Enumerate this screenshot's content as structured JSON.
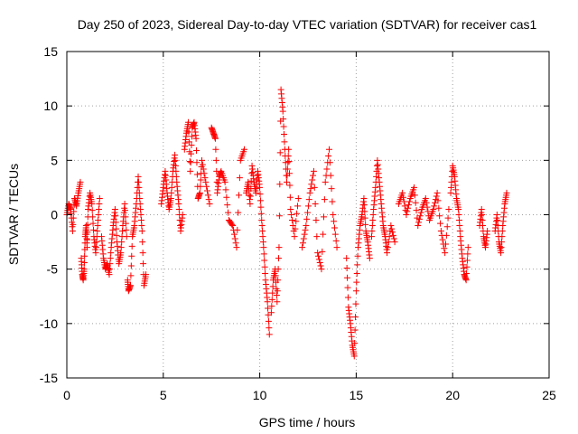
{
  "chart_data": {
    "type": "scatter",
    "title": "Day 250 of 2023, Sidereal Day-to-day VTEC variation (SDTVAR) for receiver cas1",
    "xlabel": "GPS time / hours",
    "ylabel": "SDTVAR / TECUs",
    "xlim": [
      0,
      25
    ],
    "ylim": [
      -15,
      15
    ],
    "x_ticks": [
      0,
      5,
      10,
      15,
      20,
      25
    ],
    "y_ticks": [
      -15,
      -10,
      -5,
      0,
      5,
      10,
      15
    ],
    "grid": true,
    "marker": "+",
    "color": "#ff0000",
    "series": [
      {
        "name": "SDTVAR",
        "segments": [
          {
            "x": [
              0.0,
              0.1,
              0.2,
              0.3,
              0.4,
              0.5,
              0.6,
              0.7
            ],
            "y": [
              0.0,
              1.0,
              0.5,
              -1.5,
              1.5,
              0.8,
              2.0,
              3.0
            ]
          },
          {
            "x": [
              0.75,
              0.8,
              0.85,
              0.9,
              0.95,
              1.0,
              1.05,
              1.1,
              1.2,
              1.3,
              1.4,
              1.5,
              1.6,
              1.7
            ],
            "y": [
              -4.0,
              -5.5,
              -6.0,
              -5.0,
              -2.0,
              -1.0,
              -3.0,
              0.5,
              2.0,
              1.0,
              -2.0,
              -3.5,
              -1.0,
              1.5
            ]
          },
          {
            "x": [
              1.8,
              1.9,
              2.0,
              2.1,
              2.2,
              2.3,
              2.4,
              2.5,
              2.6,
              2.7,
              2.8,
              2.9,
              3.0,
              3.1
            ],
            "y": [
              -2.0,
              -4.0,
              -5.0,
              -4.5,
              -5.5,
              -3.0,
              -1.0,
              0.5,
              -2.5,
              -4.5,
              -3.5,
              -1.0,
              1.0,
              -2.0
            ]
          },
          {
            "x": [
              3.15,
              3.2,
              3.3,
              3.4,
              3.5,
              3.6,
              3.7,
              3.8,
              3.9,
              4.0,
              4.1
            ],
            "y": [
              -6.0,
              -7.0,
              -6.5,
              -2.0,
              -1.0,
              1.0,
              3.5,
              1.0,
              -1.5,
              -6.5,
              -5.5
            ]
          },
          {
            "x": [
              4.9,
              5.0,
              5.1,
              5.2,
              5.3,
              5.4,
              5.5,
              5.6,
              5.7,
              5.8,
              5.9,
              6.0
            ],
            "y": [
              1.0,
              2.5,
              4.0,
              2.0,
              0.5,
              1.5,
              4.0,
              5.5,
              3.0,
              1.0,
              -1.5,
              0.0
            ]
          },
          {
            "x": [
              6.1,
              6.2,
              6.3,
              6.4,
              6.5,
              6.6,
              6.7,
              6.8,
              6.9,
              7.0,
              7.2,
              7.4
            ],
            "y": [
              6.0,
              7.5,
              8.5,
              4.0,
              8.0,
              8.5,
              7.0,
              1.5,
              2.0,
              5.0,
              3.0,
              1.0
            ]
          },
          {
            "x": [
              7.5,
              7.6,
              7.7,
              7.8,
              7.9,
              8.0,
              8.2,
              8.4,
              8.6,
              8.8,
              9.0,
              9.2
            ],
            "y": [
              8.0,
              7.5,
              7.0,
              2.0,
              3.5,
              4.0,
              3.0,
              -0.5,
              -1.0,
              -3.0,
              5.0,
              6.0
            ]
          },
          {
            "x": [
              9.3,
              9.4,
              9.5,
              9.6,
              9.7,
              9.8,
              9.9,
              10.0,
              10.1,
              10.2,
              10.3,
              10.4,
              10.5
            ],
            "y": [
              2.0,
              3.0,
              1.0,
              4.5,
              3.0,
              2.0,
              4.0,
              2.5,
              -0.5,
              -3.0,
              -6.0,
              -8.0,
              -11.0
            ]
          },
          {
            "x": [
              10.6,
              10.7,
              10.8,
              10.9,
              11.0,
              11.1,
              11.2,
              11.3,
              11.4,
              11.5,
              11.6,
              11.8,
              12.0
            ],
            "y": [
              -9.0,
              -6.0,
              -5.0,
              -8.0,
              -3.0,
              11.5,
              9.5,
              6.0,
              3.0,
              6.0,
              0.5,
              -2.0,
              1.5
            ]
          },
          {
            "x": [
              12.2,
              12.4,
              12.6,
              12.8,
              13.0,
              13.2,
              13.4,
              13.6,
              13.8,
              14.0
            ],
            "y": [
              -3.0,
              -1.0,
              2.0,
              4.0,
              -3.5,
              -5.0,
              3.0,
              6.0,
              0.0,
              -3.0
            ]
          },
          {
            "x": [
              14.5,
              14.6,
              14.7,
              14.8,
              14.9,
              15.0,
              15.1,
              15.2,
              15.3,
              15.4,
              15.5,
              15.6,
              15.7
            ],
            "y": [
              -4.0,
              -8.5,
              -10.0,
              -12.0,
              -13.0,
              -7.0,
              -3.0,
              -1.0,
              0.0,
              1.5,
              -1.5,
              -2.5,
              -4.0
            ]
          },
          {
            "x": [
              15.8,
              15.9,
              16.0,
              16.1,
              16.2,
              16.3,
              16.4,
              16.5,
              16.6,
              16.8,
              17.0
            ],
            "y": [
              -2.0,
              0.5,
              2.5,
              5.0,
              3.0,
              1.0,
              -1.0,
              -2.0,
              -3.5,
              -1.0,
              -2.5
            ]
          },
          {
            "x": [
              17.2,
              17.4,
              17.6,
              17.8,
              18.0,
              18.2,
              18.4,
              18.6,
              18.8,
              19.0,
              19.2,
              19.4,
              19.6,
              19.8
            ],
            "y": [
              1.0,
              2.0,
              0.0,
              1.5,
              2.5,
              -1.0,
              0.5,
              1.5,
              -0.5,
              0.5,
              2.0,
              -1.5,
              -3.5,
              0.5
            ]
          },
          {
            "x": [
              19.9,
              20.0,
              20.1,
              20.2,
              20.3,
              20.4,
              20.5,
              20.6,
              20.7,
              20.8
            ],
            "y": [
              2.0,
              4.5,
              3.5,
              1.5,
              0.5,
              -2.0,
              -4.0,
              -5.5,
              -6.0,
              -3.0
            ]
          },
          {
            "x": [
              21.4,
              21.5,
              21.6,
              21.7,
              21.8
            ],
            "y": [
              -1.0,
              0.5,
              -2.0,
              -3.0,
              -1.5
            ]
          },
          {
            "x": [
              22.2,
              22.3,
              22.4,
              22.5,
              22.6,
              22.7,
              22.8
            ],
            "y": [
              -1.5,
              0.0,
              -2.5,
              -3.5,
              -1.0,
              1.0,
              2.0
            ]
          }
        ]
      }
    ]
  }
}
